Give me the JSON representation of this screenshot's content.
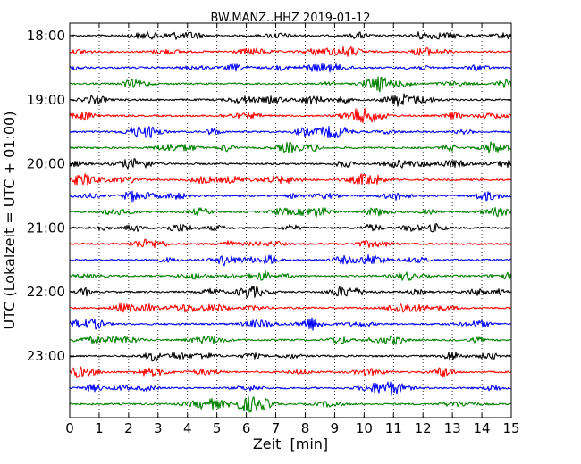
{
  "chart_data": {
    "type": "line",
    "title": "BW.MANZ..HHZ 2019-01-12",
    "xlabel": "Zeit  [min]",
    "ylabel": "UTC (Lokalzeit = UTC + 01:00)",
    "xlim": [
      0,
      15
    ],
    "x_ticks": [
      "0",
      "1",
      "2",
      "3",
      "4",
      "5",
      "6",
      "7",
      "8",
      "9",
      "10",
      "11",
      "12",
      "13",
      "14",
      "15"
    ],
    "y_tick_labels": [
      "18:00",
      "19:00",
      "20:00",
      "21:00",
      "22:00",
      "23:00"
    ],
    "grid": "vertical dotted lines at each minute",
    "trace_colors": [
      "#000000",
      "#ff0000",
      "#0000ff",
      "#008000"
    ],
    "trace_starts_utc": [
      "18:00",
      "18:15",
      "18:30",
      "18:45",
      "19:00",
      "19:15",
      "19:30",
      "19:45",
      "20:00",
      "20:15",
      "20:30",
      "20:45",
      "21:00",
      "21:15",
      "21:30",
      "21:45",
      "22:00",
      "22:15",
      "22:30",
      "22:45",
      "23:00",
      "23:15",
      "23:30",
      "23:45"
    ],
    "trace_count": 24
  }
}
